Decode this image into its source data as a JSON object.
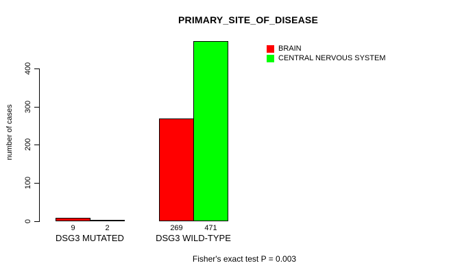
{
  "chart_data": {
    "type": "bar",
    "title": "PRIMARY_SITE_OF_DISEASE",
    "ylabel": "number of cases",
    "xlabel": "",
    "categories": [
      "DSG3 MUTATED",
      "DSG3 WILD-TYPE"
    ],
    "series": [
      {
        "name": "BRAIN",
        "color": "#FF0000",
        "values": [
          9,
          269
        ]
      },
      {
        "name": "CENTRAL NERVOUS SYSTEM",
        "color": "#00FF00",
        "values": [
          2,
          471
        ]
      }
    ],
    "yticks": [
      0,
      100,
      200,
      300,
      400
    ],
    "ylim": [
      0,
      480
    ],
    "grid": false,
    "legend_position": "top-right",
    "bar_border_color": "#000000",
    "background_color": "#FFFFFF",
    "note": "Fisher's exact test P = 0.003"
  }
}
